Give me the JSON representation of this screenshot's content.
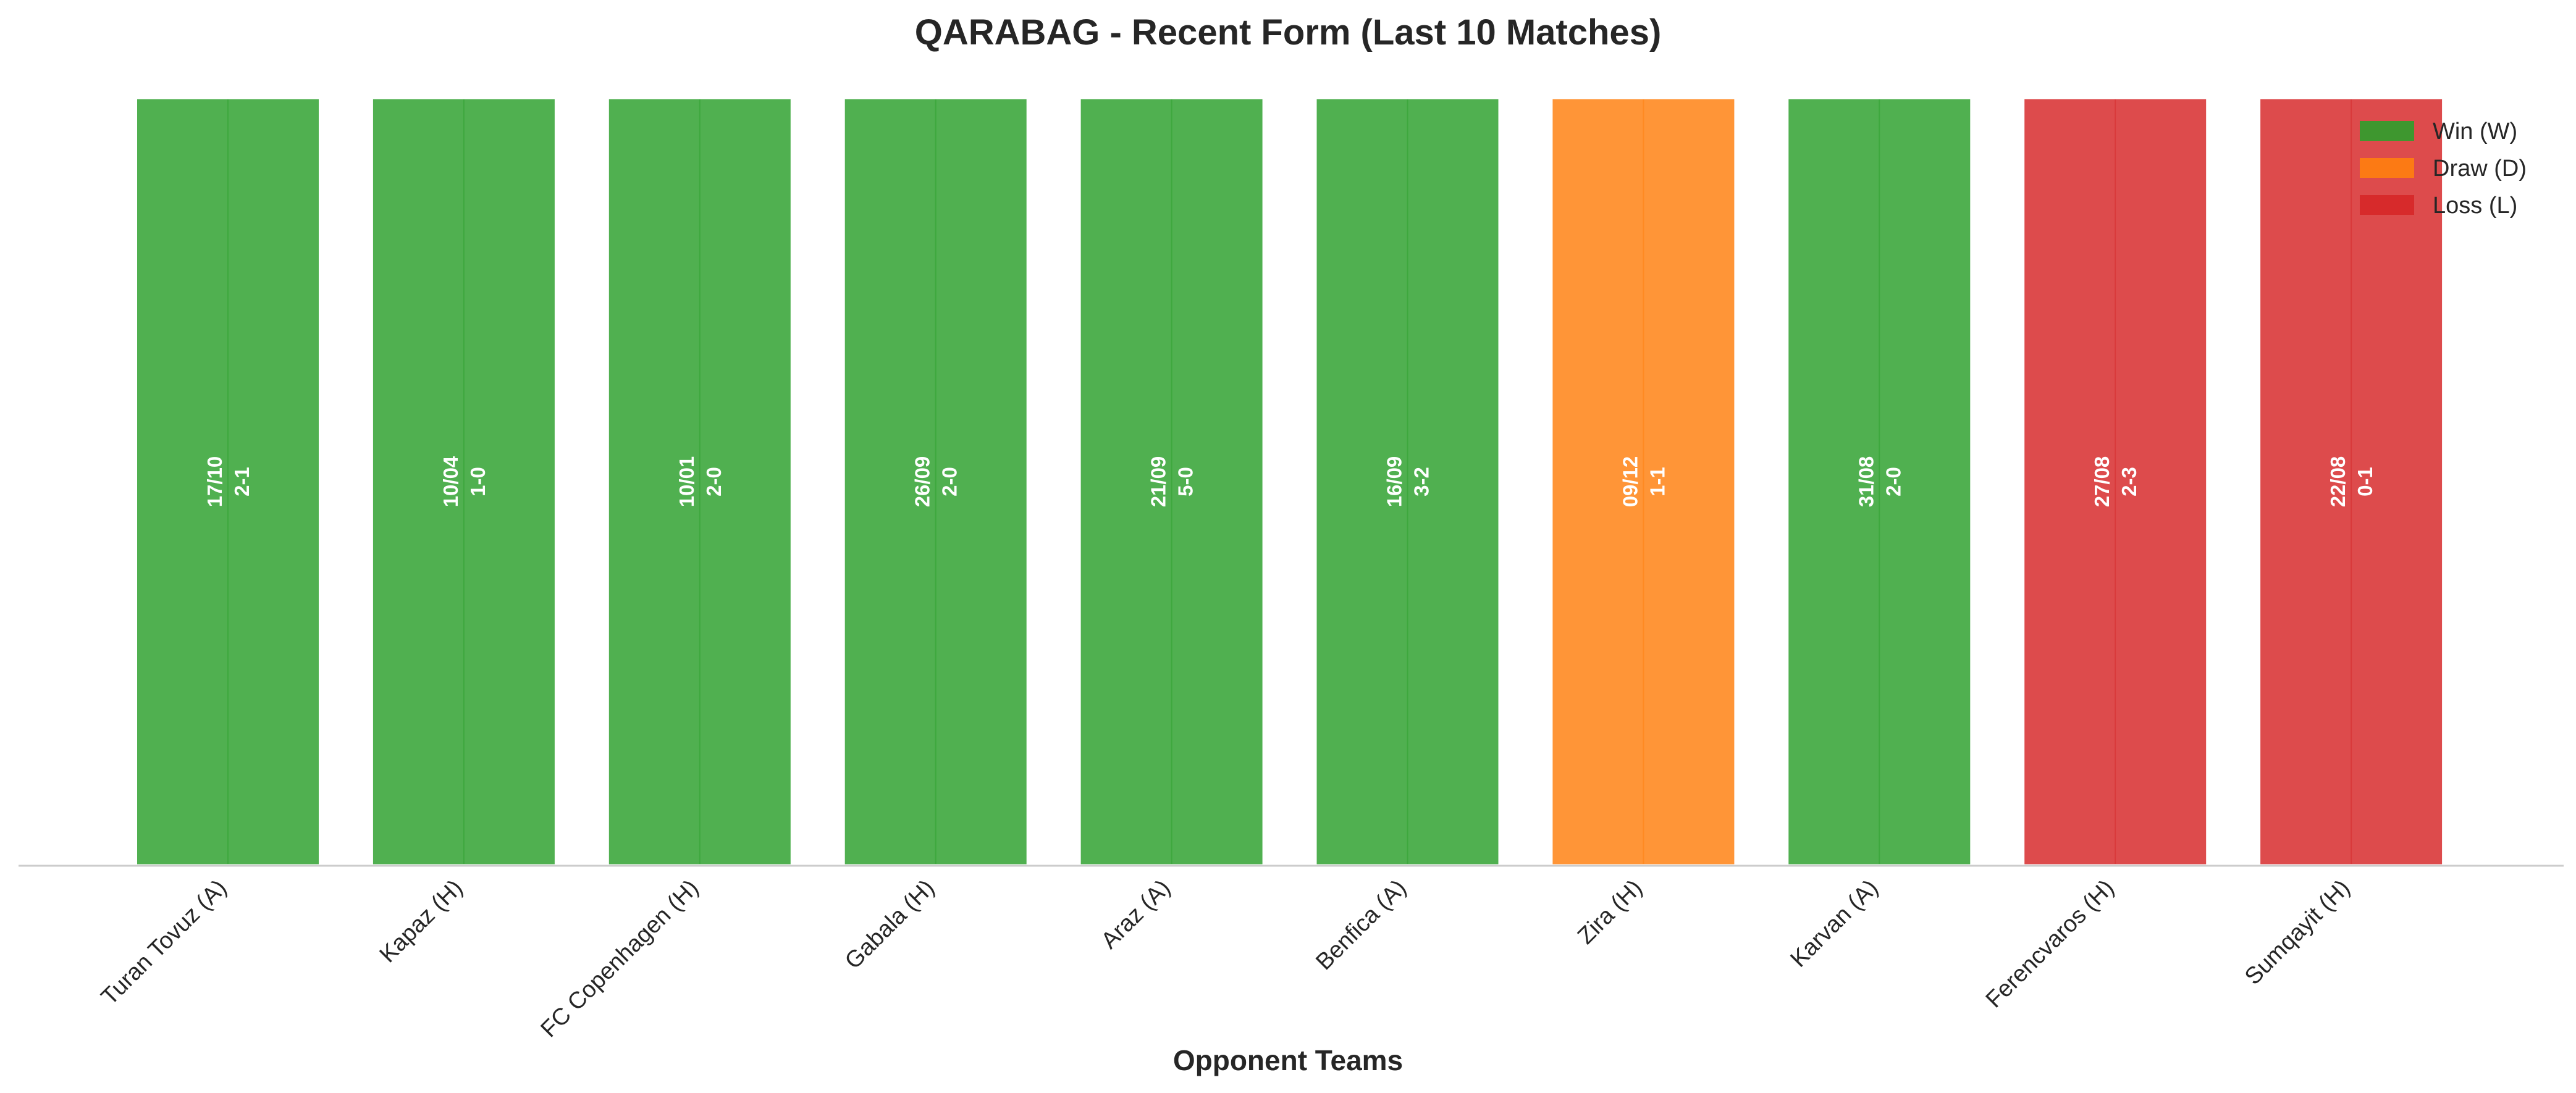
{
  "chart_data": {
    "type": "bar",
    "title": "QARABAG - Recent Form (Last 10 Matches)",
    "xlabel": "Opponent Teams",
    "ylabel": "",
    "ylim": [
      0,
      1
    ],
    "grid": false,
    "legend_position": "top-right",
    "categories": [
      "Turan Tovuz (A)",
      "Kapaz (H)",
      "FC Copenhagen (H)",
      "Gabala (H)",
      "Araz (A)",
      "Benfica (A)",
      "Zira (H)",
      "Karvan (A)",
      "Ferencvaros (H)",
      "Sumqayit (H)"
    ],
    "values": [
      1,
      1,
      1,
      1,
      1,
      1,
      1,
      1,
      1,
      1
    ],
    "results": [
      "W",
      "W",
      "W",
      "W",
      "W",
      "W",
      "D",
      "W",
      "L",
      "L"
    ],
    "dates": [
      "17/10",
      "10/04",
      "10/01",
      "26/09",
      "21/09",
      "16/09",
      "09/12",
      "31/08",
      "27/08",
      "22/08"
    ],
    "scores": [
      "2-1",
      "1-0",
      "2-0",
      "2-0",
      "5-0",
      "3-2",
      "1-1",
      "2-0",
      "2-3",
      "0-1"
    ],
    "legend": [
      {
        "key": "W",
        "label": "Win (W)",
        "color": "#2ca02c"
      },
      {
        "key": "D",
        "label": "Draw (D)",
        "color": "#ff7f0e"
      },
      {
        "key": "L",
        "label": "Loss (L)",
        "color": "#d62728"
      }
    ]
  }
}
